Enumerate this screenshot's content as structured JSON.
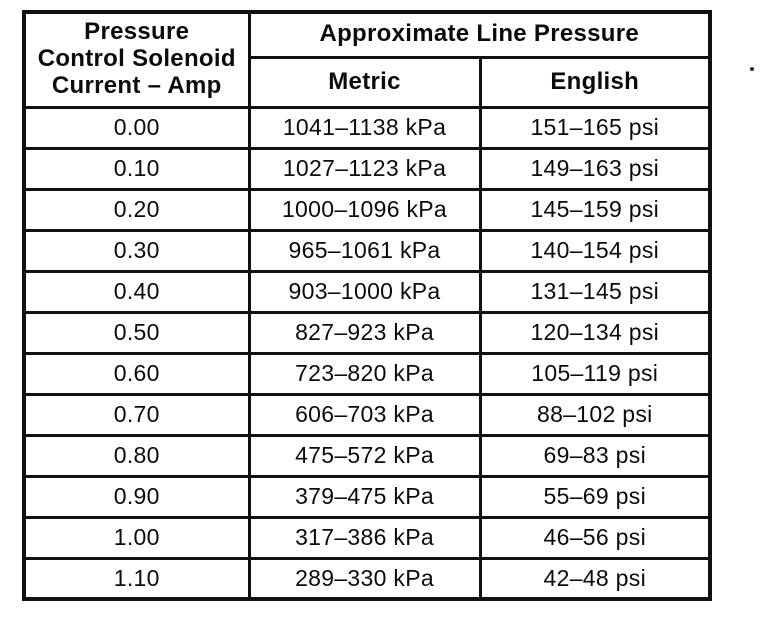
{
  "table": {
    "amp_header": "Pressure\nControl Solenoid\nCurrent – Amp",
    "group_header": "Approximate Line Pressure",
    "sub_headers": [
      "Metric",
      "English"
    ],
    "rows": [
      {
        "amp": "0.00",
        "metric": "1041–1138 kPa",
        "english": "151–165 psi"
      },
      {
        "amp": "0.10",
        "metric": "1027–1123 kPa",
        "english": "149–163 psi"
      },
      {
        "amp": "0.20",
        "metric": "1000–1096 kPa",
        "english": "145–159 psi"
      },
      {
        "amp": "0.30",
        "metric": "965–1061 kPa",
        "english": "140–154 psi"
      },
      {
        "amp": "0.40",
        "metric": "903–1000 kPa",
        "english": "131–145 psi"
      },
      {
        "amp": "0.50",
        "metric": "827–923 kPa",
        "english": "120–134 psi"
      },
      {
        "amp": "0.60",
        "metric": "723–820 kPa",
        "english": "105–119 psi"
      },
      {
        "amp": "0.70",
        "metric": "606–703 kPa",
        "english": "88–102 psi"
      },
      {
        "amp": "0.80",
        "metric": "475–572 kPa",
        "english": "69–83 psi"
      },
      {
        "amp": "0.90",
        "metric": "379–475 kPa",
        "english": "55–69 psi"
      },
      {
        "amp": "1.00",
        "metric": "317–386 kPa",
        "english": "46–56 psi"
      },
      {
        "amp": "1.10",
        "metric": "289–330 kPa",
        "english": "42–48 psi"
      }
    ]
  }
}
